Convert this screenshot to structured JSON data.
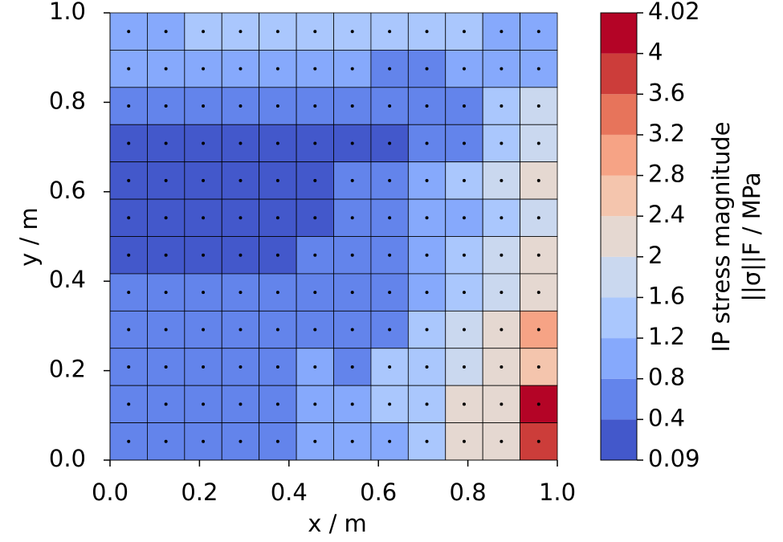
{
  "chart_data": {
    "type": "heatmap",
    "xlabel": "x / m",
    "ylabel": "y / m",
    "colorbar_label": [
      "IP stress magnitude",
      "||σ||F / MPa"
    ],
    "xlim": [
      0,
      1
    ],
    "ylim": [
      0,
      1
    ],
    "xticks": [
      {
        "value": 0,
        "label": "0.0"
      },
      0.2,
      0.4,
      0.6,
      0.8,
      {
        "value": 1,
        "label": "1.0"
      }
    ],
    "yticks": [
      {
        "value": 0,
        "label": "0.0"
      },
      0.2,
      0.4,
      0.6,
      0.8,
      {
        "value": 1,
        "label": "1.0"
      }
    ],
    "levels": [
      0.09,
      0.4,
      0.8,
      1.2,
      1.6,
      2,
      2.4,
      2.8,
      3.2,
      3.6,
      4,
      4.02
    ],
    "colors": [
      "#4358cb",
      "#6384eb",
      "#86a9fc",
      "#aac7fd",
      "#cad8ef",
      "#e5d8d1",
      "#f4c5ad",
      "#f6a385",
      "#e7745b",
      "#cc3d3a",
      "#b40426"
    ],
    "colorbar_spacing": "uniform",
    "row_order": "top-to-bottom",
    "values": [
      [
        1.0,
        1.0,
        1.4,
        1.4,
        1.4,
        1.4,
        1.4,
        1.4,
        1.4,
        1.4,
        1.0,
        1.0
      ],
      [
        1.0,
        1.0,
        1.0,
        1.0,
        1.0,
        1.0,
        1.0,
        0.6,
        0.6,
        1.0,
        1.0,
        1.0
      ],
      [
        0.6,
        0.6,
        0.6,
        0.6,
        0.6,
        0.6,
        0.6,
        0.6,
        0.6,
        0.6,
        1.4,
        1.8
      ],
      [
        0.3,
        0.3,
        0.3,
        0.3,
        0.3,
        0.3,
        0.3,
        0.3,
        0.6,
        0.6,
        1.4,
        1.8
      ],
      [
        0.3,
        0.3,
        0.3,
        0.3,
        0.3,
        0.3,
        0.6,
        0.6,
        1.0,
        1.4,
        1.8,
        2.2
      ],
      [
        0.3,
        0.3,
        0.3,
        0.3,
        0.3,
        0.3,
        0.6,
        0.6,
        1.0,
        1.0,
        1.4,
        1.8
      ],
      [
        0.3,
        0.3,
        0.3,
        0.3,
        0.3,
        0.6,
        0.6,
        0.6,
        1.0,
        1.4,
        1.8,
        2.2
      ],
      [
        0.6,
        0.6,
        0.6,
        0.6,
        0.6,
        0.6,
        0.6,
        0.6,
        1.0,
        1.4,
        1.8,
        2.2
      ],
      [
        0.6,
        0.6,
        0.6,
        0.6,
        0.6,
        0.6,
        0.6,
        0.6,
        1.4,
        1.8,
        2.2,
        3.0
      ],
      [
        0.6,
        0.6,
        0.6,
        0.6,
        0.6,
        1.0,
        0.6,
        1.4,
        1.4,
        1.8,
        2.2,
        2.6
      ],
      [
        0.6,
        0.6,
        0.6,
        0.6,
        0.6,
        1.0,
        1.0,
        1.4,
        1.4,
        2.2,
        2.2,
        4.02
      ],
      [
        0.6,
        0.6,
        0.6,
        0.6,
        0.6,
        1.0,
        1.0,
        1.0,
        1.4,
        2.2,
        2.2,
        3.8
      ]
    ]
  }
}
